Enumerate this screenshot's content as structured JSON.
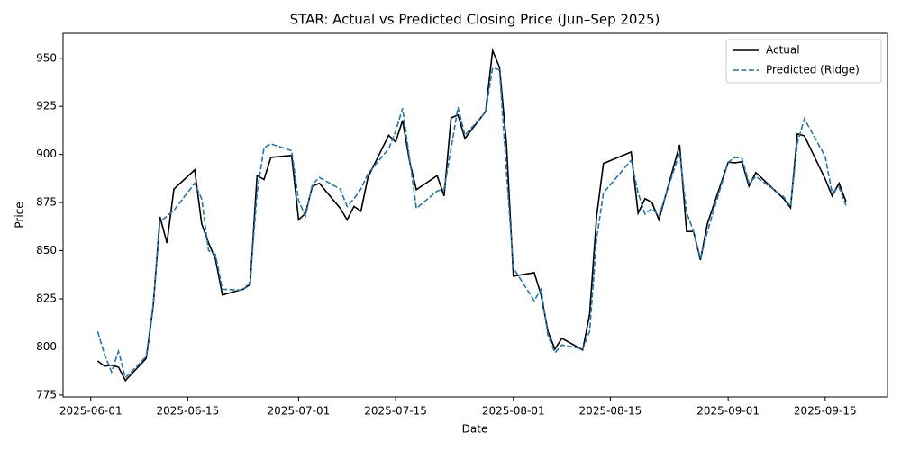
{
  "chart_data": {
    "type": "line",
    "title": "STAR: Actual vs Predicted Closing Price (Jun–Sep 2025)",
    "xlabel": "Date",
    "ylabel": "Price",
    "x": [
      "2025-06-02",
      "2025-06-03",
      "2025-06-04",
      "2025-06-05",
      "2025-06-06",
      "2025-06-09",
      "2025-06-10",
      "2025-06-11",
      "2025-06-12",
      "2025-06-13",
      "2025-06-16",
      "2025-06-17",
      "2025-06-18",
      "2025-06-19",
      "2025-06-20",
      "2025-06-23",
      "2025-06-24",
      "2025-06-25",
      "2025-06-26",
      "2025-06-27",
      "2025-06-30",
      "2025-07-01",
      "2025-07-02",
      "2025-07-03",
      "2025-07-04",
      "2025-07-07",
      "2025-07-08",
      "2025-07-09",
      "2025-07-10",
      "2025-07-11",
      "2025-07-14",
      "2025-07-15",
      "2025-07-16",
      "2025-07-17",
      "2025-07-18",
      "2025-07-21",
      "2025-07-22",
      "2025-07-23",
      "2025-07-24",
      "2025-07-25",
      "2025-07-28",
      "2025-07-29",
      "2025-07-30",
      "2025-07-31",
      "2025-08-01",
      "2025-08-04",
      "2025-08-05",
      "2025-08-06",
      "2025-08-07",
      "2025-08-08",
      "2025-08-11",
      "2025-08-12",
      "2025-08-13",
      "2025-08-14",
      "2025-08-18",
      "2025-08-19",
      "2025-08-20",
      "2025-08-21",
      "2025-08-22",
      "2025-08-25",
      "2025-08-26",
      "2025-08-27",
      "2025-08-28",
      "2025-08-29",
      "2025-09-01",
      "2025-09-02",
      "2025-09-03",
      "2025-09-04",
      "2025-09-05",
      "2025-09-09",
      "2025-09-10",
      "2025-09-11",
      "2025-09-12",
      "2025-09-15",
      "2025-09-16",
      "2025-09-17",
      "2025-09-18"
    ],
    "series": [
      {
        "name": "Actual",
        "color": "#000000",
        "dash": "solid",
        "values": [
          792.7,
          790,
          790.5,
          789.5,
          782.5,
          794,
          821,
          867.6,
          854,
          882,
          892,
          864,
          854,
          845.6,
          827,
          830,
          832.5,
          889,
          887,
          898.5,
          899.5,
          866,
          869.5,
          883.5,
          885,
          872,
          866,
          873,
          870.5,
          888,
          910,
          906.5,
          917.7,
          896.6,
          881.7,
          889,
          878.4,
          919,
          920.5,
          908.3,
          922.4,
          954,
          945.3,
          905.5,
          836.8,
          838.6,
          827,
          808,
          798.9,
          804.5,
          798.4,
          817,
          867.6,
          895.3,
          901.3,
          869.5,
          877,
          875,
          866,
          905,
          860,
          860,
          845.2,
          864,
          896,
          895.7,
          896.2,
          883.5,
          890.6,
          877,
          872.3,
          910.7,
          909.7,
          887.3,
          878.4,
          885,
          875.6
        ]
      },
      {
        "name": "Predicted (Ridge)",
        "color": "#1f77b4",
        "dash": "dashed",
        "values": [
          808,
          796,
          787,
          797.7,
          784,
          795,
          822,
          865,
          868,
          871,
          885,
          877,
          850,
          848,
          830,
          829.5,
          834,
          880,
          903.5,
          905.5,
          902,
          876,
          868,
          884.5,
          888,
          882,
          873,
          877,
          882,
          890,
          903,
          912,
          924,
          898,
          872,
          881,
          882,
          903,
          924.5,
          910,
          922,
          945,
          944,
          891,
          841,
          824,
          830,
          806,
          797,
          801,
          799,
          808,
          856,
          880,
          897,
          880,
          869,
          872,
          868,
          901,
          870,
          860,
          846,
          860,
          896,
          898.5,
          898,
          885,
          888.5,
          878,
          873,
          906,
          918.5,
          899,
          880,
          883,
          873.5
        ]
      }
    ],
    "xlim": [
      "2025-05-28",
      "2025-09-24"
    ],
    "xticks": [
      "2025-06-01",
      "2025-06-15",
      "2025-07-01",
      "2025-07-15",
      "2025-08-01",
      "2025-08-15",
      "2025-09-01",
      "2025-09-15"
    ],
    "ylim": [
      774,
      963
    ],
    "yticks": [
      775,
      800,
      825,
      850,
      875,
      900,
      925,
      950
    ],
    "grid": false,
    "legend": "upper right"
  }
}
